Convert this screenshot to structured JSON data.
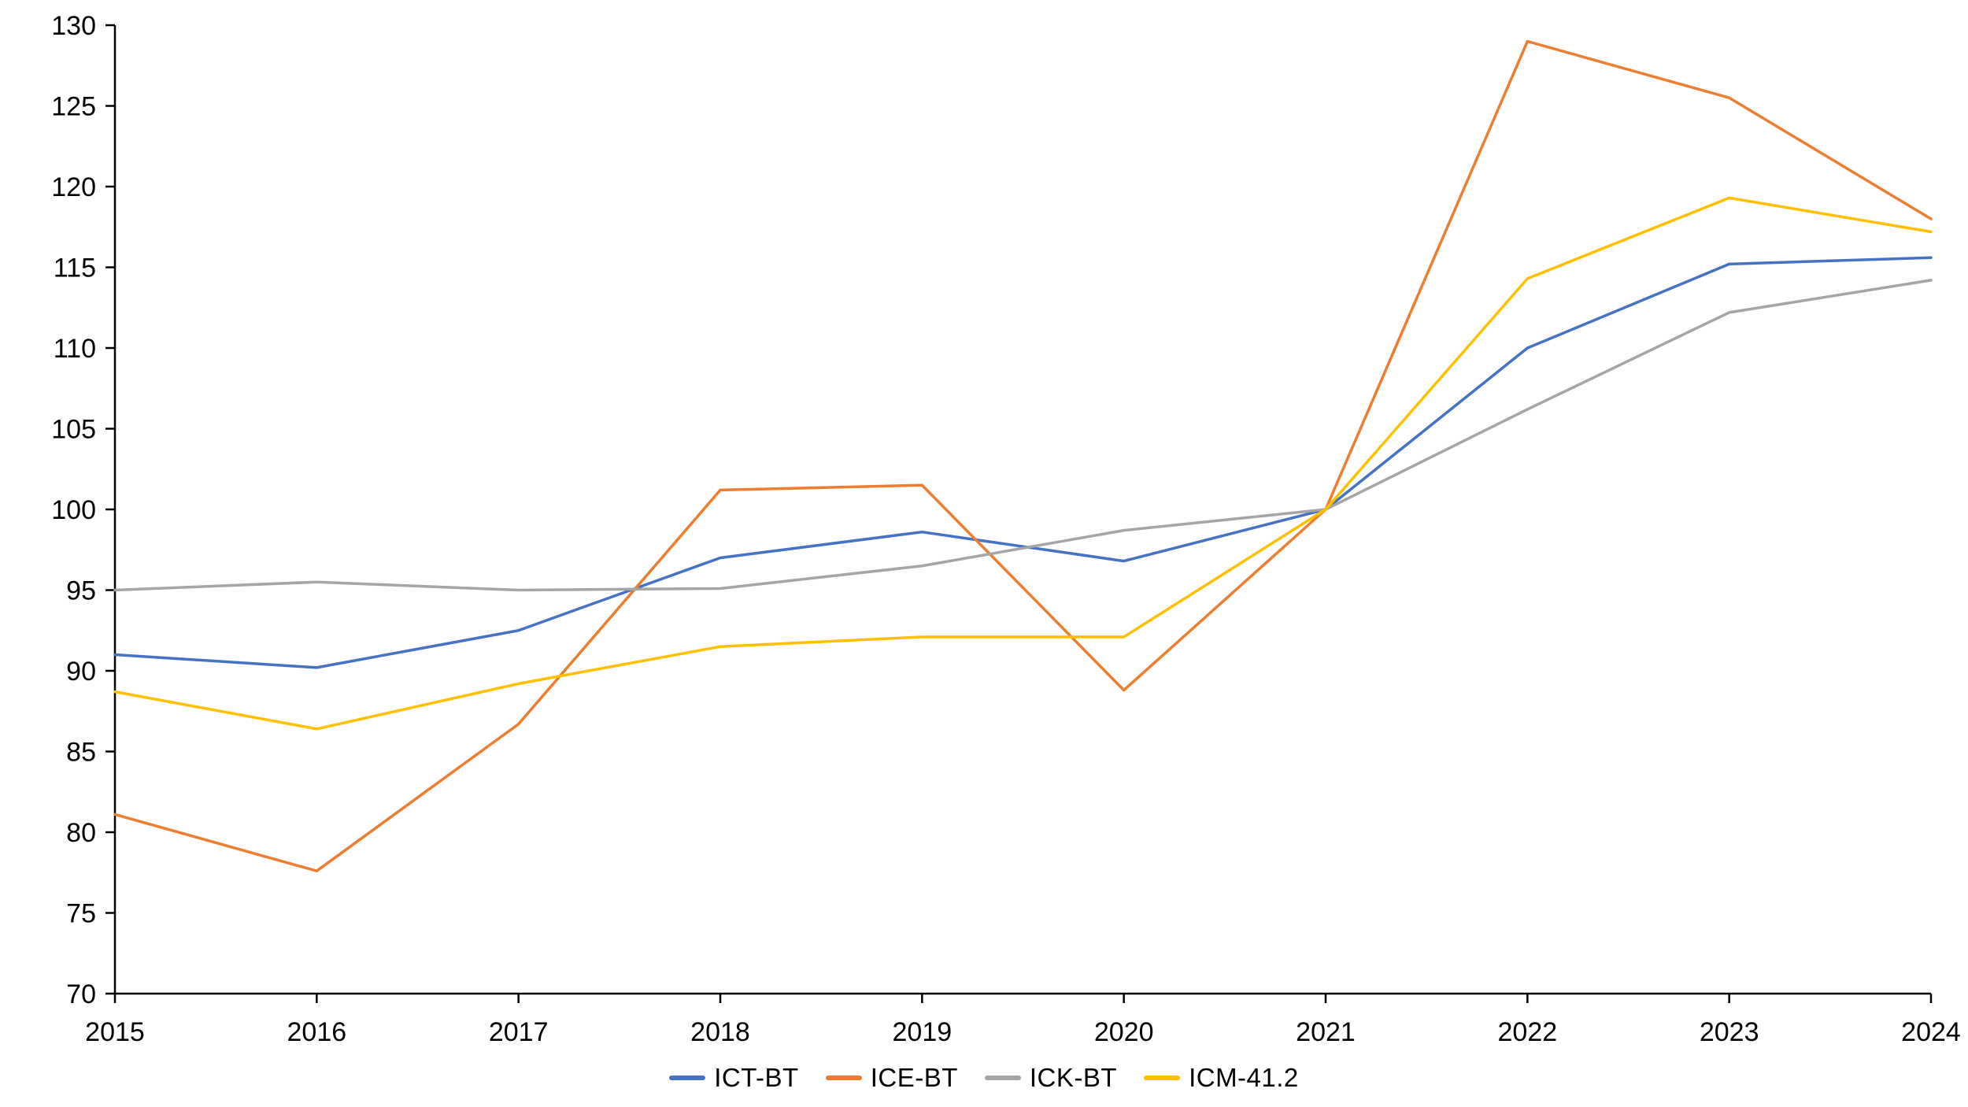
{
  "chart_data": {
    "type": "line",
    "categories": [
      "2015",
      "2016",
      "2017",
      "2018",
      "2019",
      "2020",
      "2021",
      "2022",
      "2023",
      "2024"
    ],
    "series": [
      {
        "name": "ICT-BT",
        "color": "#4472C4",
        "values": [
          91.0,
          90.2,
          92.5,
          97.0,
          98.6,
          96.8,
          100.0,
          110.0,
          115.2,
          115.6
        ]
      },
      {
        "name": "ICE-BT",
        "color": "#ED7D31",
        "values": [
          81.1,
          77.6,
          86.7,
          101.2,
          101.5,
          88.8,
          100.0,
          129.0,
          125.5,
          118.0
        ]
      },
      {
        "name": "ICK-BT",
        "color": "#A5A5A5",
        "values": [
          95.0,
          95.5,
          95.0,
          95.1,
          96.5,
          98.7,
          100.0,
          106.2,
          112.2,
          114.2
        ]
      },
      {
        "name": "ICM-41.2",
        "color": "#FFC000",
        "values": [
          88.7,
          86.4,
          89.2,
          91.5,
          92.1,
          92.1,
          100.0,
          114.3,
          119.3,
          117.2
        ]
      }
    ],
    "ylim": [
      70,
      130
    ],
    "yticks": [
      70,
      75,
      80,
      85,
      90,
      95,
      100,
      105,
      110,
      115,
      120,
      125,
      130
    ],
    "grid": false,
    "legend_position": "bottom",
    "axis_color": "#000000",
    "text_color": "#000000"
  }
}
